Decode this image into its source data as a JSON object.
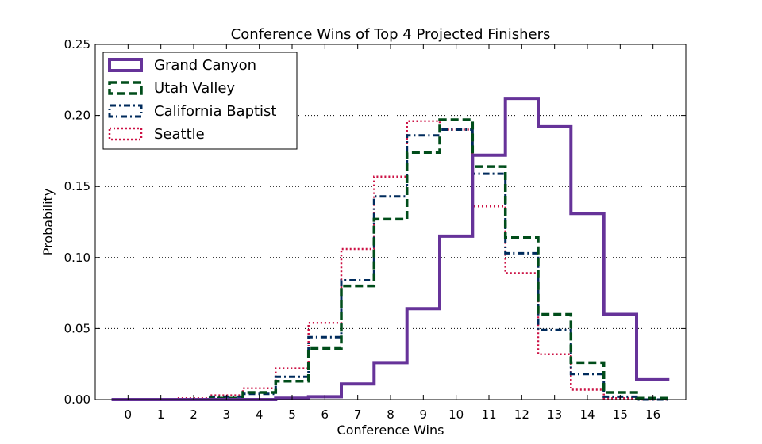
{
  "chart_data": {
    "type": "step",
    "title": "Conference Wins of Top 4 Projected Finishers",
    "xlabel": "Conference Wins",
    "ylabel": "Probability",
    "xlim": [
      -1,
      17
    ],
    "ylim": [
      0,
      0.25
    ],
    "x": [
      0,
      1,
      2,
      3,
      4,
      5,
      6,
      7,
      8,
      9,
      10,
      11,
      12,
      13,
      14,
      15,
      16
    ],
    "xticks": [
      "0",
      "1",
      "2",
      "3",
      "4",
      "5",
      "6",
      "7",
      "8",
      "9",
      "10",
      "11",
      "12",
      "13",
      "14",
      "15",
      "16"
    ],
    "yticks": [
      "0.00",
      "0.05",
      "0.10",
      "0.15",
      "0.20",
      "0.25"
    ],
    "grid": "y-dotted",
    "legend_position": "top-left",
    "series": [
      {
        "name": "Grand Canyon",
        "color": "#663399",
        "style": "solid",
        "values": [
          0,
          0,
          0,
          0,
          0,
          0.001,
          0.002,
          0.011,
          0.026,
          0.064,
          0.115,
          0.172,
          0.212,
          0.192,
          0.131,
          0.06,
          0.014
        ]
      },
      {
        "name": "Utah Valley",
        "color": "#004d1a",
        "style": "dashed",
        "values": [
          0,
          0,
          0,
          0.001,
          0.005,
          0.013,
          0.036,
          0.08,
          0.127,
          0.174,
          0.197,
          0.164,
          0.114,
          0.06,
          0.026,
          0.005,
          0.001
        ]
      },
      {
        "name": "California Baptist",
        "color": "#002b5c",
        "style": "dashdot",
        "values": [
          0,
          0,
          0,
          0.002,
          0.004,
          0.016,
          0.044,
          0.084,
          0.143,
          0.186,
          0.19,
          0.159,
          0.103,
          0.049,
          0.018,
          0.002,
          0
        ]
      },
      {
        "name": "Seattle",
        "color": "#cc1144",
        "style": "dotted",
        "values": [
          0,
          0,
          0.001,
          0.003,
          0.008,
          0.022,
          0.054,
          0.106,
          0.157,
          0.196,
          0.19,
          0.136,
          0.089,
          0.032,
          0.007,
          0.001,
          0
        ]
      }
    ]
  }
}
